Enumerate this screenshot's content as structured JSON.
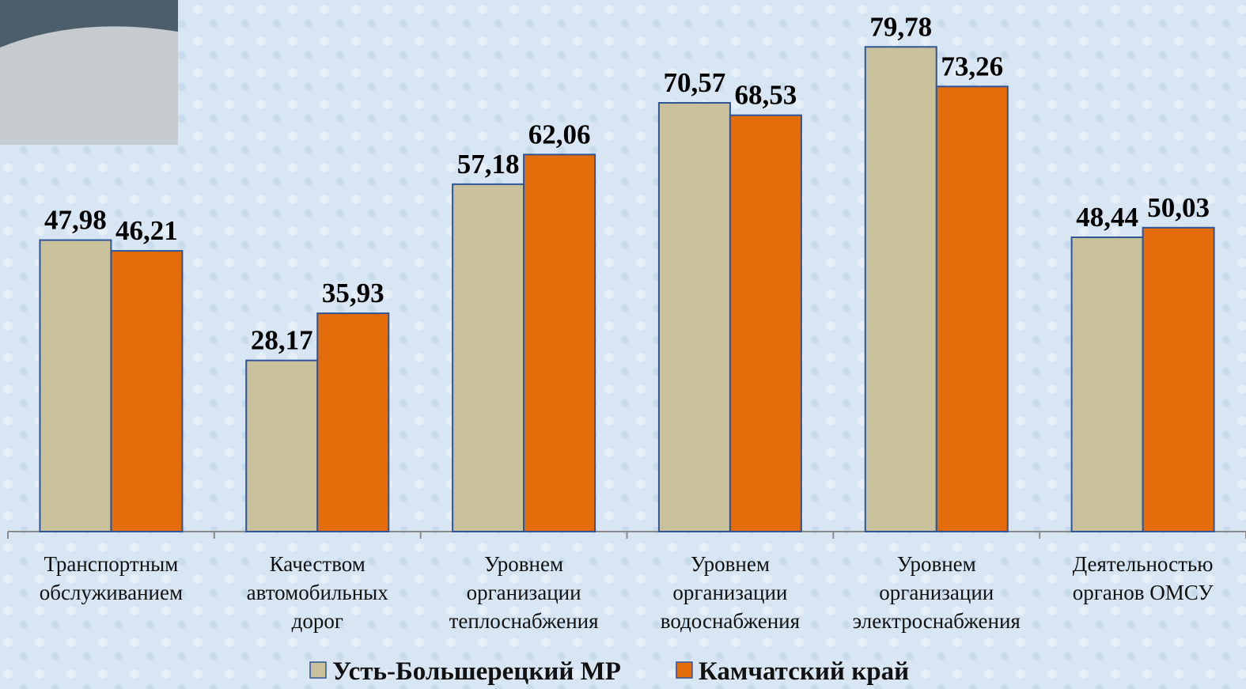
{
  "chart_data": {
    "type": "bar",
    "categories": [
      [
        "Транспортным",
        "обслуживанием"
      ],
      [
        "Качеством",
        "автомобильных",
        "дорог"
      ],
      [
        "Уровнем",
        "организации",
        "теплоснабжения"
      ],
      [
        "Уровнем",
        "организации",
        "водоснабжения"
      ],
      [
        "Уровнем",
        "организации",
        "электроснабжения"
      ],
      [
        "Деятельностью",
        "органов ОМСУ"
      ]
    ],
    "series": [
      {
        "name": "Усть-Большерецкий МР",
        "color": "#c9c19c",
        "values": [
          47.98,
          28.17,
          57.18,
          70.57,
          79.78,
          48.44
        ],
        "value_labels": [
          "47,98",
          "28,17",
          "57,18",
          "70,57",
          "79,78",
          "48,44"
        ]
      },
      {
        "name": "Камчатский край",
        "color": "#e46c0a",
        "values": [
          46.21,
          35.93,
          62.06,
          68.53,
          73.26,
          50.03
        ],
        "value_labels": [
          "46,21",
          "35,93",
          "62,06",
          "68,53",
          "73,26",
          "50,03"
        ]
      }
    ],
    "ylim": [
      0,
      87.5
    ],
    "legend": "bottom"
  }
}
